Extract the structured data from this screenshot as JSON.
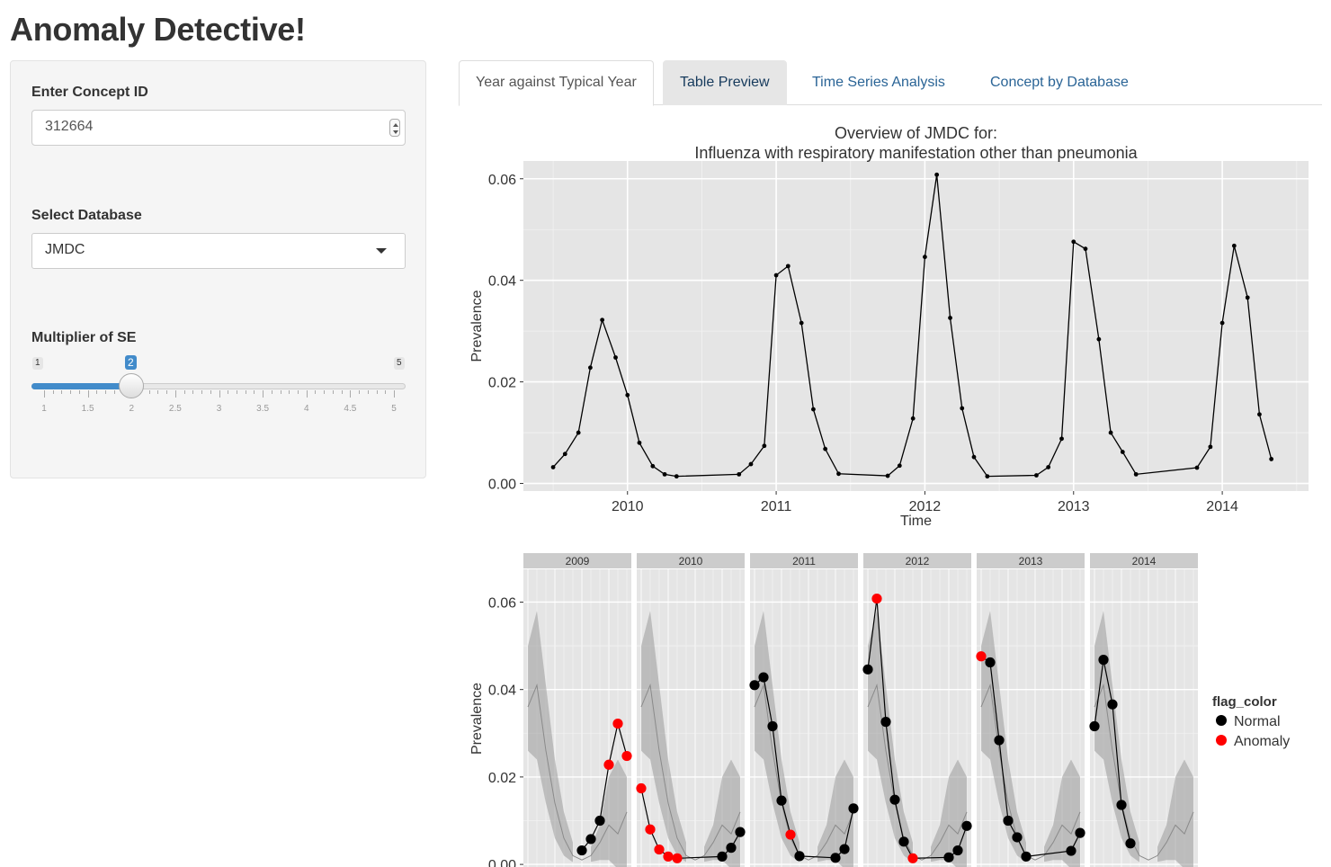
{
  "app": {
    "title": "Anomaly Detective!"
  },
  "sidebar": {
    "concept_label": "Enter Concept ID",
    "concept_value": "312664",
    "database_label": "Select Database",
    "database_value": "JMDC",
    "multiplier_label": "Multiplier of SE",
    "slider": {
      "min": 1,
      "max": 5,
      "value": 2,
      "min_label": "1",
      "max_label": "5",
      "value_label": "2",
      "tick_labels": [
        "1",
        "1.5",
        "2",
        "2.5",
        "3",
        "3.5",
        "4",
        "4.5",
        "5"
      ]
    }
  },
  "tabs": [
    {
      "label": "Year against Typical Year",
      "active": true
    },
    {
      "label": "Table Preview",
      "active": false
    },
    {
      "label": "Time Series Analysis",
      "active": false
    },
    {
      "label": "Concept by Database",
      "active": false
    }
  ],
  "colors": {
    "accent": "#428bca",
    "panel_bg": "#e5e5e5",
    "anomaly": "#ff0000",
    "normal": "#000000"
  },
  "chart_data": [
    {
      "type": "line",
      "title": "Overview of JMDC for:",
      "subtitle": "Influenza with respiratory manifestation other than pneumonia",
      "xlabel": "Time",
      "ylabel": "Prevalence",
      "xlim": [
        2009.3,
        2014.58
      ],
      "ylim": [
        -0.0015,
        0.0635
      ],
      "x_ticks": [
        "2010",
        "2011",
        "2012",
        "2013",
        "2014"
      ],
      "y_ticks": [
        "0.00",
        "0.02",
        "0.04",
        "0.06"
      ],
      "series": [
        {
          "name": "prevalence",
          "x": [
            2009.5,
            2009.58,
            2009.67,
            2009.75,
            2009.83,
            2009.92,
            2010.0,
            2010.08,
            2010.17,
            2010.25,
            2010.33,
            2010.75,
            2010.83,
            2010.92,
            2011.0,
            2011.08,
            2011.17,
            2011.25,
            2011.33,
            2011.42,
            2011.75,
            2011.83,
            2011.92,
            2012.0,
            2012.08,
            2012.17,
            2012.25,
            2012.33,
            2012.42,
            2012.75,
            2012.83,
            2012.92,
            2013.0,
            2013.08,
            2013.17,
            2013.25,
            2013.33,
            2013.42,
            2013.83,
            2013.92,
            2014.0,
            2014.08,
            2014.17,
            2014.25,
            2014.33
          ],
          "values": [
            0.0032,
            0.0058,
            0.01,
            0.0228,
            0.0322,
            0.0248,
            0.0174,
            0.008,
            0.0034,
            0.0018,
            0.0014,
            0.0018,
            0.0038,
            0.0074,
            0.041,
            0.0428,
            0.0316,
            0.0146,
            0.0068,
            0.0019,
            0.0015,
            0.0035,
            0.0128,
            0.0446,
            0.0608,
            0.0326,
            0.0148,
            0.0052,
            0.0014,
            0.0016,
            0.0032,
            0.0088,
            0.0476,
            0.0462,
            0.0284,
            0.01,
            0.0062,
            0.0018,
            0.0031,
            0.0072,
            0.0316,
            0.0468,
            0.0366,
            0.0136,
            0.0048
          ]
        }
      ]
    },
    {
      "type": "scatter",
      "xlabel": "",
      "ylabel": "Prevalence",
      "ylim": [
        -0.0008,
        0.0675
      ],
      "y_ticks": [
        "0.00",
        "0.02",
        "0.04",
        "0.06"
      ],
      "facets": [
        "2009",
        "2010",
        "2011",
        "2012",
        "2013",
        "2014"
      ],
      "legend": {
        "title": "flag_color",
        "entries": [
          "Normal",
          "Anomaly"
        ],
        "position": "right"
      },
      "typical_year": {
        "months": [
          1,
          2,
          3,
          4,
          5,
          6,
          7,
          8,
          9,
          10,
          11,
          12
        ],
        "mean": [
          0.036,
          0.041,
          0.026,
          0.014,
          0.006,
          0.002,
          0.001,
          0.002,
          0.005,
          0.009,
          0.007,
          0.012
        ],
        "lower": [
          0.026,
          0.024,
          0.014,
          0.006,
          0.002,
          0.0005,
          0.0002,
          0.0006,
          0.001,
          0.001,
          -0.001,
          -0.002
        ],
        "upper": [
          0.05,
          0.058,
          0.041,
          0.024,
          0.012,
          0.005,
          0.002,
          0.004,
          0.009,
          0.02,
          0.024,
          0.02
        ]
      },
      "points": [
        {
          "facet": "2009",
          "month": 7,
          "value": 0.0032,
          "flag": "Normal"
        },
        {
          "facet": "2009",
          "month": 8,
          "value": 0.0058,
          "flag": "Normal"
        },
        {
          "facet": "2009",
          "month": 9,
          "value": 0.01,
          "flag": "Normal"
        },
        {
          "facet": "2009",
          "month": 10,
          "value": 0.0228,
          "flag": "Anomaly"
        },
        {
          "facet": "2009",
          "month": 11,
          "value": 0.0322,
          "flag": "Anomaly"
        },
        {
          "facet": "2009",
          "month": 12,
          "value": 0.0248,
          "flag": "Anomaly"
        },
        {
          "facet": "2010",
          "month": 1,
          "value": 0.0174,
          "flag": "Anomaly"
        },
        {
          "facet": "2010",
          "month": 2,
          "value": 0.008,
          "flag": "Anomaly"
        },
        {
          "facet": "2010",
          "month": 3,
          "value": 0.0034,
          "flag": "Anomaly"
        },
        {
          "facet": "2010",
          "month": 4,
          "value": 0.0018,
          "flag": "Anomaly"
        },
        {
          "facet": "2010",
          "month": 5,
          "value": 0.0014,
          "flag": "Anomaly"
        },
        {
          "facet": "2010",
          "month": 10,
          "value": 0.0018,
          "flag": "Normal"
        },
        {
          "facet": "2010",
          "month": 11,
          "value": 0.0038,
          "flag": "Normal"
        },
        {
          "facet": "2010",
          "month": 12,
          "value": 0.0074,
          "flag": "Normal"
        },
        {
          "facet": "2011",
          "month": 1,
          "value": 0.041,
          "flag": "Normal"
        },
        {
          "facet": "2011",
          "month": 2,
          "value": 0.0428,
          "flag": "Normal"
        },
        {
          "facet": "2011",
          "month": 3,
          "value": 0.0316,
          "flag": "Normal"
        },
        {
          "facet": "2011",
          "month": 4,
          "value": 0.0146,
          "flag": "Normal"
        },
        {
          "facet": "2011",
          "month": 5,
          "value": 0.0068,
          "flag": "Anomaly"
        },
        {
          "facet": "2011",
          "month": 6,
          "value": 0.0019,
          "flag": "Normal"
        },
        {
          "facet": "2011",
          "month": 10,
          "value": 0.0015,
          "flag": "Normal"
        },
        {
          "facet": "2011",
          "month": 11,
          "value": 0.0035,
          "flag": "Normal"
        },
        {
          "facet": "2011",
          "month": 12,
          "value": 0.0128,
          "flag": "Normal"
        },
        {
          "facet": "2012",
          "month": 1,
          "value": 0.0446,
          "flag": "Normal"
        },
        {
          "facet": "2012",
          "month": 2,
          "value": 0.0608,
          "flag": "Anomaly"
        },
        {
          "facet": "2012",
          "month": 3,
          "value": 0.0326,
          "flag": "Normal"
        },
        {
          "facet": "2012",
          "month": 4,
          "value": 0.0148,
          "flag": "Normal"
        },
        {
          "facet": "2012",
          "month": 5,
          "value": 0.0052,
          "flag": "Normal"
        },
        {
          "facet": "2012",
          "month": 6,
          "value": 0.0014,
          "flag": "Anomaly"
        },
        {
          "facet": "2012",
          "month": 10,
          "value": 0.0016,
          "flag": "Normal"
        },
        {
          "facet": "2012",
          "month": 11,
          "value": 0.0032,
          "flag": "Normal"
        },
        {
          "facet": "2012",
          "month": 12,
          "value": 0.0088,
          "flag": "Normal"
        },
        {
          "facet": "2013",
          "month": 1,
          "value": 0.0476,
          "flag": "Anomaly"
        },
        {
          "facet": "2013",
          "month": 2,
          "value": 0.0462,
          "flag": "Normal"
        },
        {
          "facet": "2013",
          "month": 3,
          "value": 0.0284,
          "flag": "Normal"
        },
        {
          "facet": "2013",
          "month": 4,
          "value": 0.01,
          "flag": "Normal"
        },
        {
          "facet": "2013",
          "month": 5,
          "value": 0.0062,
          "flag": "Normal"
        },
        {
          "facet": "2013",
          "month": 6,
          "value": 0.0018,
          "flag": "Normal"
        },
        {
          "facet": "2013",
          "month": 11,
          "value": 0.0031,
          "flag": "Normal"
        },
        {
          "facet": "2013",
          "month": 12,
          "value": 0.0072,
          "flag": "Normal"
        },
        {
          "facet": "2014",
          "month": 1,
          "value": 0.0316,
          "flag": "Normal"
        },
        {
          "facet": "2014",
          "month": 2,
          "value": 0.0468,
          "flag": "Normal"
        },
        {
          "facet": "2014",
          "month": 3,
          "value": 0.0366,
          "flag": "Normal"
        },
        {
          "facet": "2014",
          "month": 4,
          "value": 0.0136,
          "flag": "Normal"
        },
        {
          "facet": "2014",
          "month": 5,
          "value": 0.0048,
          "flag": "Normal"
        }
      ]
    }
  ]
}
